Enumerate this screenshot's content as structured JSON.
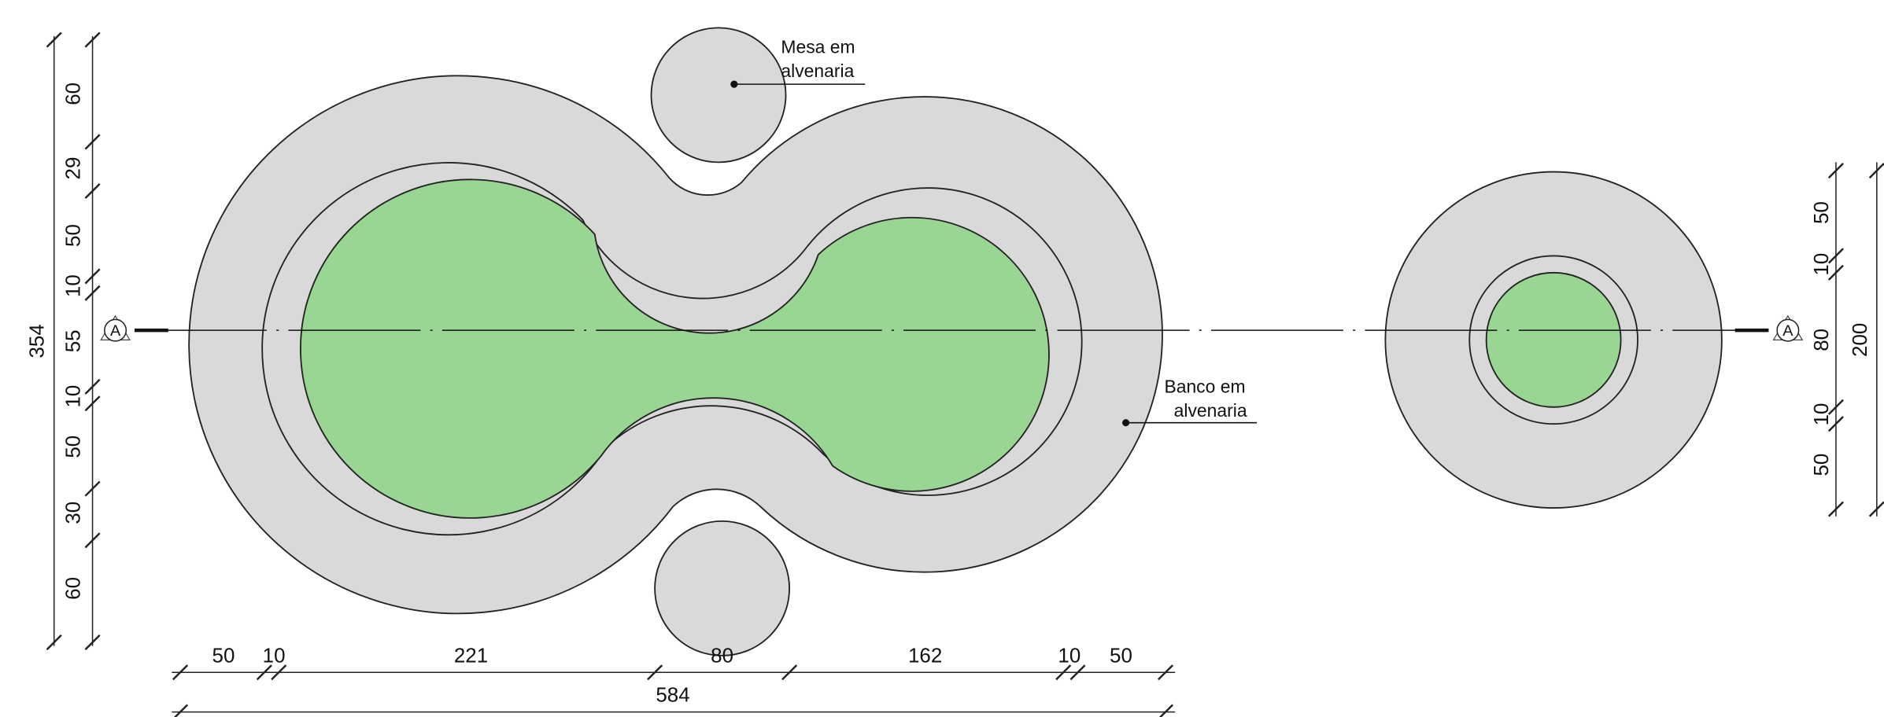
{
  "labels": {
    "table": [
      "Mesa em",
      "alvenaria"
    ],
    "bench": [
      "Banco em",
      "alvenaria"
    ]
  },
  "section_markers": [
    "A",
    "A"
  ],
  "dimensions": {
    "left": {
      "segments": [
        "60",
        "29",
        "50",
        "10",
        "55",
        "10",
        "50",
        "30",
        "60"
      ],
      "total": "354"
    },
    "bottom": {
      "segments": [
        "50",
        "10",
        "221",
        "80",
        "162",
        "10",
        "50"
      ],
      "total": "584"
    },
    "right": {
      "segments": [
        "50",
        "10",
        "80",
        "10",
        "50"
      ],
      "total": "200"
    }
  }
}
